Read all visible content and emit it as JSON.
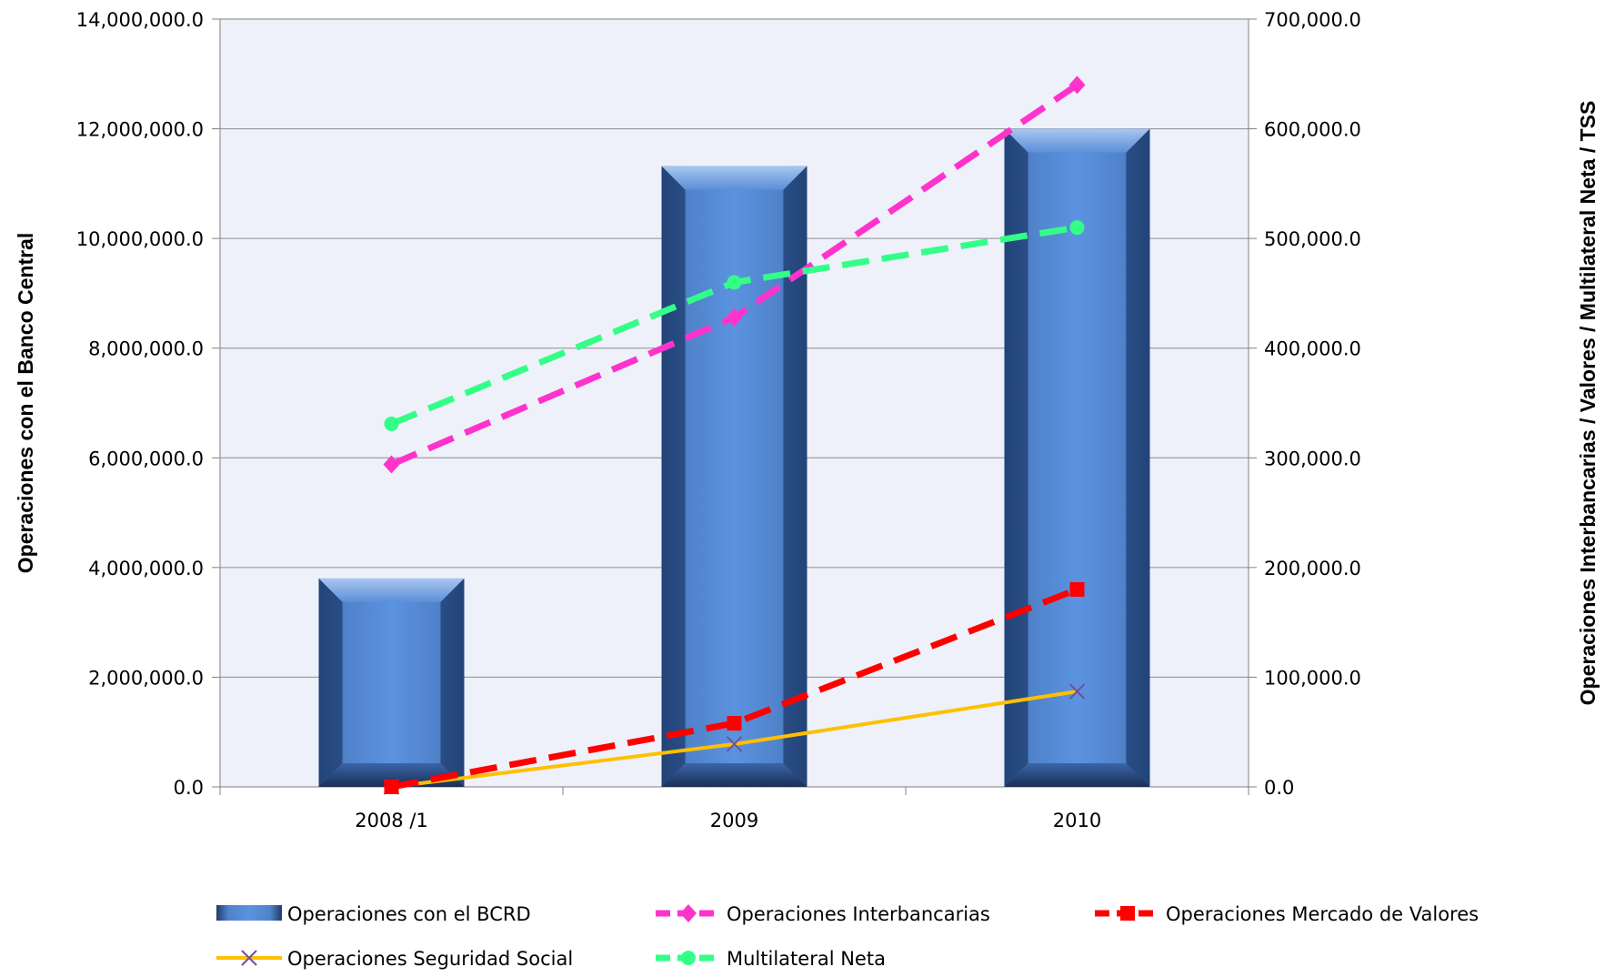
{
  "chart_data": {
    "type": "bar",
    "categories": [
      "2008 /1",
      "2009",
      "2010"
    ],
    "left_axis": {
      "label": "Operaciones con el Banco Central",
      "range": [
        0,
        14000000
      ],
      "ticks": [
        "0.0",
        "2,000,000.0",
        "4,000,000.0",
        "6,000,000.0",
        "8,000,000.0",
        "10,000,000.0",
        "12,000,000.0",
        "14,000,000.0"
      ],
      "tick_values": [
        0,
        2000000,
        4000000,
        6000000,
        8000000,
        10000000,
        12000000,
        14000000
      ]
    },
    "right_axis": {
      "label": "Operaciones Interbancarias / Valores / Multilateral Neta / TSS",
      "range": [
        0,
        700000
      ],
      "ticks": [
        "0.0",
        "100,000.0",
        "200,000.0",
        "300,000.0",
        "400,000.0",
        "500,000.0",
        "600,000.0",
        "700,000.0"
      ],
      "tick_values": [
        0,
        100000,
        200000,
        300000,
        400000,
        500000,
        600000,
        700000
      ]
    },
    "grid": true,
    "plot_background": "#eef1f9",
    "series": [
      {
        "name": "Operaciones con el BCRD",
        "kind": "bar",
        "axis": "left",
        "values": [
          3800000,
          11320000,
          12000000
        ],
        "color": "#5b8fd8"
      },
      {
        "name": "Operaciones Interbancarias",
        "kind": "line",
        "axis": "right",
        "values": [
          294000,
          428000,
          640000
        ],
        "color": "#ff33cc",
        "marker": "diamond",
        "dash": "dash"
      },
      {
        "name": "Operaciones Mercado de Valores",
        "kind": "line",
        "axis": "right",
        "values": [
          0,
          58000,
          180000
        ],
        "color": "#ff0000",
        "marker": "square",
        "dash": "dash"
      },
      {
        "name": "Operaciones Seguridad Social",
        "kind": "line",
        "axis": "right",
        "values": [
          0,
          39000,
          87000
        ],
        "color": "#ffc000",
        "marker": "x",
        "dash": "solid"
      },
      {
        "name": "Multilateral Neta",
        "kind": "line",
        "axis": "right",
        "values": [
          331000,
          460000,
          510000
        ],
        "color": "#33ff88",
        "marker": "circle",
        "dash": "dash"
      }
    ],
    "legend_position": "bottom"
  }
}
